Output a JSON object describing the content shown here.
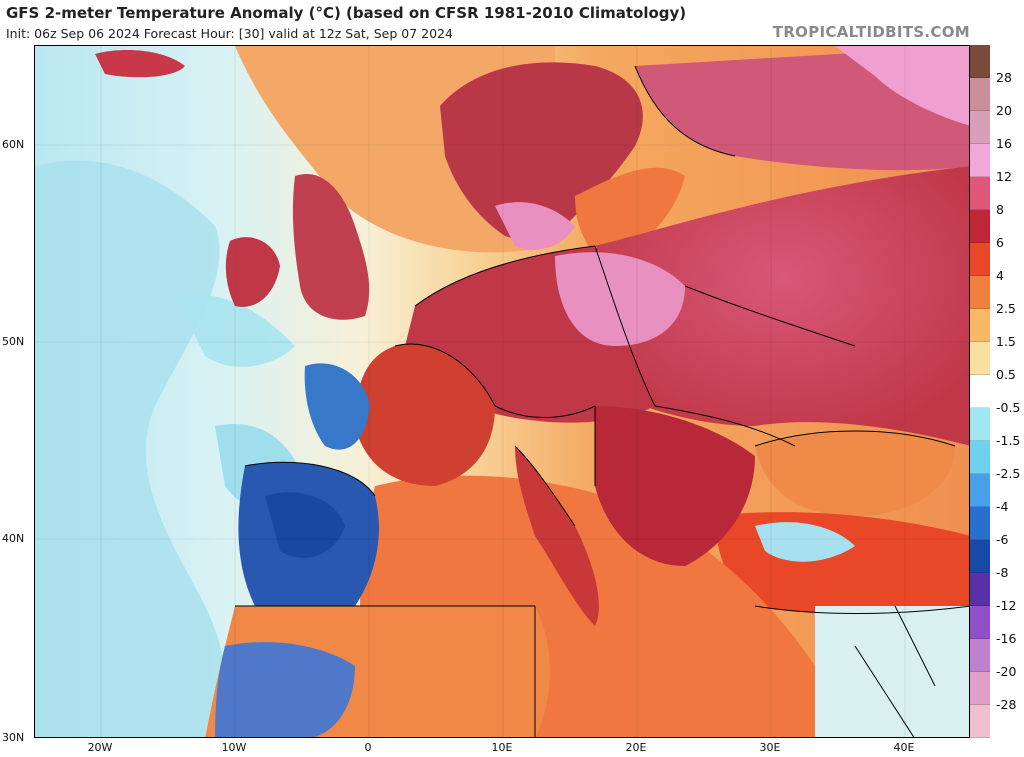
{
  "header": {
    "title": "GFS 2-meter Temperature Anomaly (°C) (based on CFSR 1981-2010 Climatology)",
    "subtitle": "Init: 06z Sep 06 2024   Forecast Hour: [30]   valid at 12z Sat, Sep 07 2024",
    "brand": "TROPICALTIDBITS.COM"
  },
  "axes": {
    "lat_labels": [
      "60N",
      "50N",
      "40N",
      "30N"
    ],
    "lon_labels": [
      "20W",
      "10W",
      "0",
      "10E",
      "20E",
      "30E",
      "40E"
    ]
  },
  "legend": {
    "labels": [
      "28",
      "20",
      "16",
      "12",
      "8",
      "6",
      "4",
      "2.5",
      "1.5",
      "0.5",
      "-0.5",
      "-1.5",
      "-2.5",
      "-4",
      "-6",
      "-8",
      "-12",
      "-16",
      "-20",
      "-28"
    ],
    "colors": [
      "#7a4a3a",
      "#c8909a",
      "#d8a0b8",
      "#f0a8d8",
      "#e05878",
      "#c02838",
      "#e84828",
      "#f08040",
      "#f8b868",
      "#f8e0a0",
      "#ffffff",
      "#a0e8f0",
      "#70d0f0",
      "#48a0e8",
      "#2870d0",
      "#1848a8",
      "#5830a8",
      "#9050c8",
      "#c080d0",
      "#e0a0c8",
      "#f0c0d0"
    ]
  },
  "colors": {
    "ocean_warm": "#f4a05a",
    "atlantic_neutral": "#f8f0d8",
    "atlantic_cool": "#a8e4f0",
    "med_sea": "#f07840",
    "land_hot": "#c83848",
    "land_very_hot": "#a82838",
    "land_pink": "#e890c0",
    "iberia_cold": "#2858b0",
    "border": "#000000"
  }
}
